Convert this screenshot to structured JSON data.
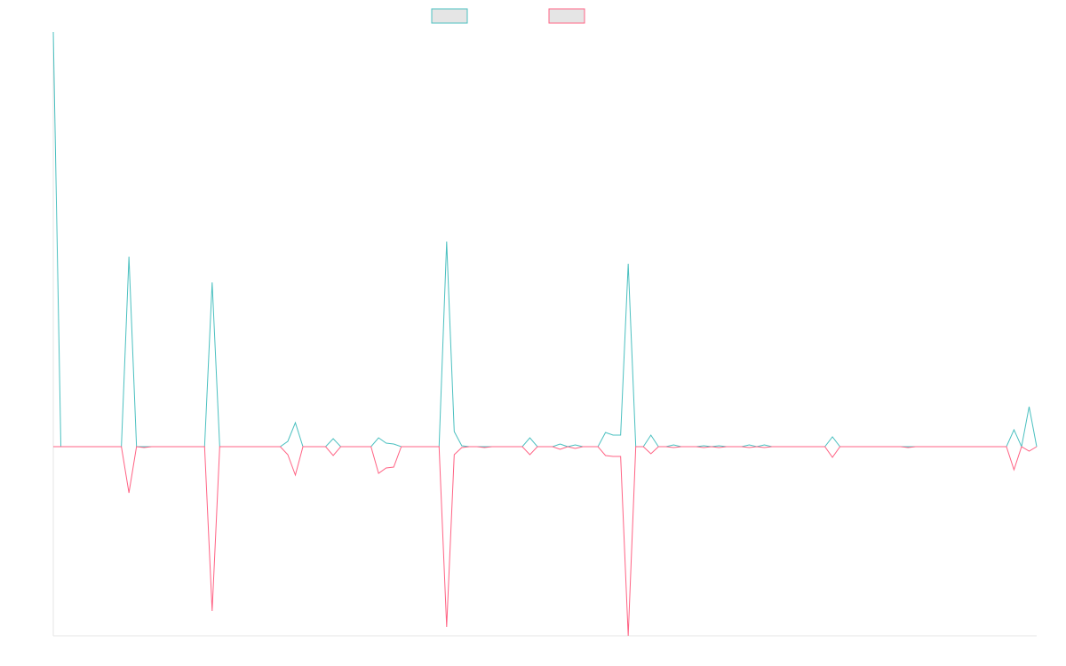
{
  "chart_data": {
    "type": "line",
    "categories": [
      null,
      null,
      null,
      null,
      null,
      null,
      null,
      null,
      null,
      null,
      null,
      null,
      null,
      null,
      null,
      null,
      null,
      null,
      null,
      null,
      null,
      null,
      null,
      null,
      null,
      null,
      null,
      null,
      null,
      null,
      null,
      null,
      null,
      null,
      null,
      null,
      null,
      null,
      null,
      null,
      null,
      null,
      null,
      null,
      null,
      null,
      null,
      null,
      null,
      null,
      null,
      null,
      null,
      null,
      null,
      null,
      null,
      null,
      null,
      null,
      null,
      null,
      null,
      null,
      null,
      null,
      null,
      null,
      null,
      null,
      null,
      null,
      null,
      null,
      null,
      null,
      null,
      null,
      null,
      null,
      null,
      null,
      null,
      null,
      null,
      null,
      null,
      null,
      null,
      null,
      null,
      null,
      null,
      null,
      null,
      null,
      null,
      null,
      null,
      null,
      null,
      null,
      null,
      null,
      null,
      null,
      null,
      null,
      null,
      null,
      null,
      null,
      null,
      null,
      null,
      null,
      null,
      null,
      null,
      null,
      null,
      null,
      null,
      null,
      null,
      null,
      null,
      null,
      null,
      null,
      null
    ],
    "series": [
      {
        "color": "#4bc0c0",
        "values": [
          46.7,
          0,
          0,
          0,
          0,
          0,
          0,
          0,
          0,
          0,
          21.4,
          0,
          0,
          0,
          0,
          0,
          0,
          0,
          0,
          0,
          0,
          18.5,
          0,
          0,
          0,
          0,
          0,
          0,
          0,
          0,
          0,
          0.6,
          2.7,
          0,
          0,
          0,
          0,
          0.9,
          0,
          0,
          0,
          0,
          0,
          1.0,
          0.4,
          0.3,
          0,
          0,
          0,
          0,
          0,
          0,
          23.1,
          1.7,
          0.1,
          0,
          0,
          0,
          0,
          0,
          0,
          0,
          0,
          1.0,
          0,
          0,
          0,
          0.3,
          0,
          0.2,
          0,
          0,
          0,
          1.6,
          1.3,
          1.3,
          20.6,
          0,
          0,
          1.3,
          0,
          0,
          0.2,
          0,
          0,
          0,
          0.1,
          0,
          0.1,
          0,
          0,
          0,
          0.2,
          0,
          0.2,
          0,
          0,
          0,
          0,
          0,
          0,
          0,
          0,
          1.1,
          0,
          0,
          0,
          0,
          0,
          0,
          0,
          0,
          0,
          0,
          0,
          0,
          0,
          0,
          0,
          0,
          0,
          0,
          0,
          0,
          0,
          0,
          0,
          1.9,
          0,
          4.5,
          0
        ]
      },
      {
        "color": "#ff6384",
        "values": [
          0,
          0,
          0,
          0,
          0,
          0,
          0,
          0,
          0,
          0,
          -5.2,
          0,
          -0.1,
          0,
          0,
          0,
          0,
          0,
          0,
          0,
          0,
          -18.5,
          0,
          0,
          0,
          0,
          0,
          0,
          0,
          0,
          0,
          -0.9,
          -3.2,
          0,
          0,
          0,
          0,
          -1.0,
          0,
          0,
          0,
          0,
          0,
          -3.0,
          -2.4,
          -2.3,
          0,
          0,
          0,
          0,
          0,
          0,
          -20.3,
          -0.9,
          -0.1,
          0,
          0,
          -0.1,
          0,
          0,
          0,
          0,
          0,
          -0.9,
          0,
          0,
          0,
          -0.3,
          0,
          -0.2,
          0,
          0,
          0,
          -1.0,
          -1.1,
          -1.1,
          -21.3,
          0,
          0,
          -0.8,
          0,
          0,
          -0.1,
          0,
          0,
          0,
          -0.1,
          0,
          -0.1,
          0,
          0,
          0,
          -0.1,
          0,
          -0.1,
          0,
          0,
          0,
          0,
          0,
          0,
          0,
          0,
          -1.2,
          0,
          0,
          0,
          0,
          0,
          0,
          0,
          0,
          0,
          -0.1,
          0,
          0,
          0,
          0,
          0,
          0,
          0,
          0,
          0,
          0,
          0,
          0,
          0,
          -2.6,
          0,
          -0.5,
          0
        ]
      }
    ],
    "ylim": [
      -21.3,
      46.7
    ]
  }
}
